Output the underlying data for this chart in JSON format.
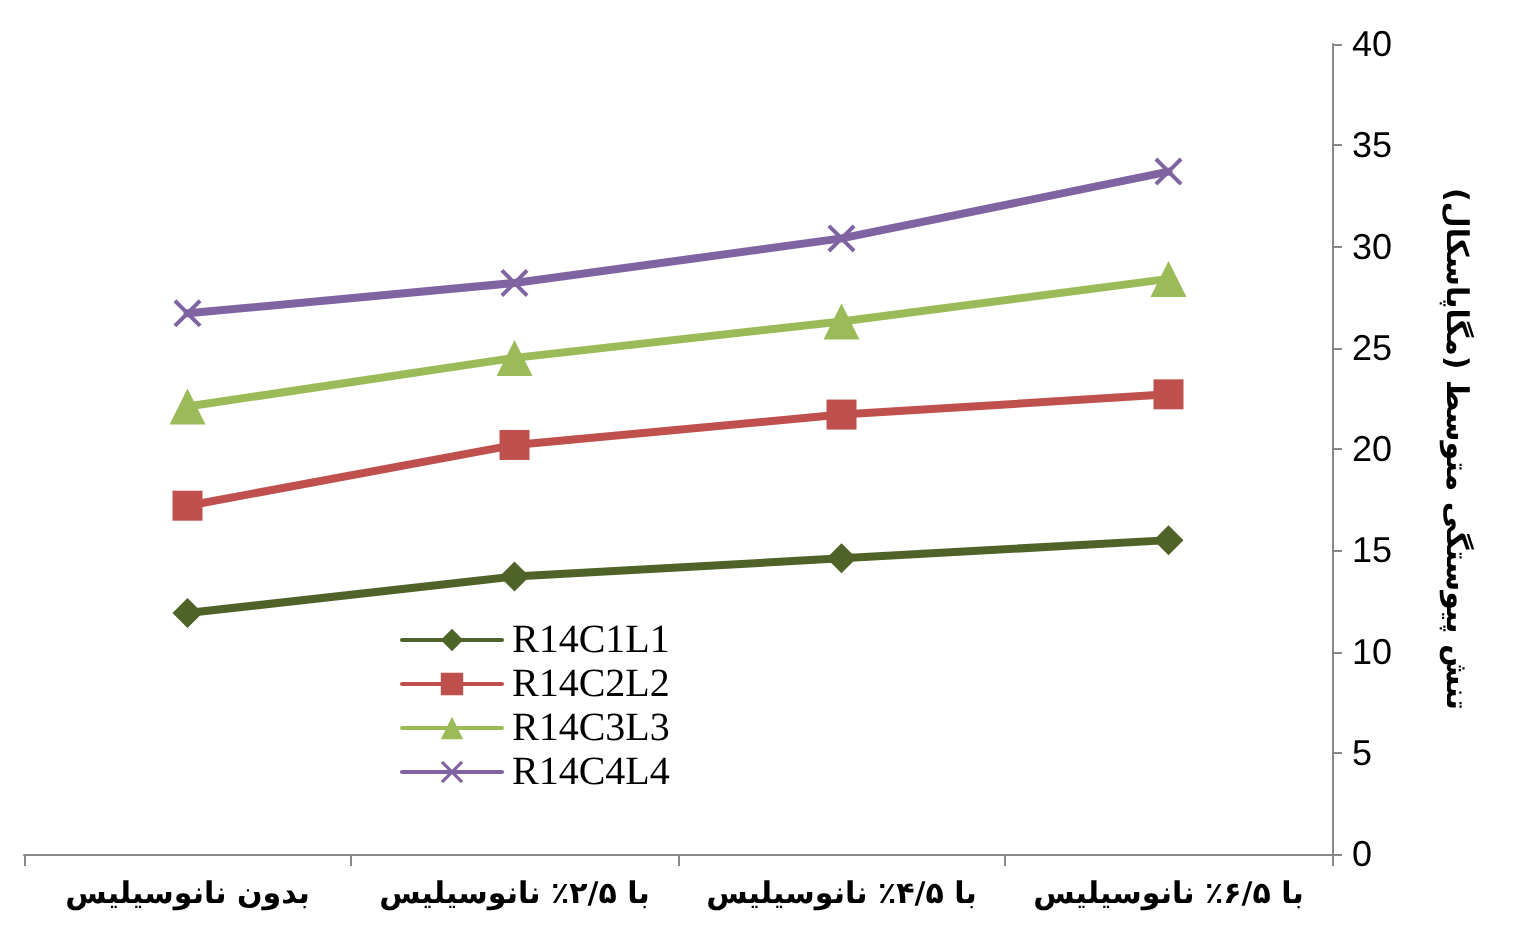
{
  "chart_data": {
    "type": "line",
    "ylabel": "تنش پیوستگی متوسط (مگاپاسکال)",
    "categories": [
      "بدون نانوسیلیس",
      "با ۲/۵٪ نانوسیلیس",
      "با ۴/۵٪ نانوسیلیس",
      "با ۶/۵٪ نانوسیلیس"
    ],
    "series": [
      {
        "name": "R14C1L1",
        "color": "#4f6228",
        "marker": "diamond",
        "values": [
          11.9,
          13.7,
          14.6,
          15.5
        ]
      },
      {
        "name": "R14C2L2",
        "color": "#c0504d",
        "marker": "square",
        "values": [
          17.2,
          20.2,
          21.7,
          22.7
        ]
      },
      {
        "name": "R14C3L3",
        "color": "#9bbb59",
        "marker": "triangle",
        "values": [
          22.1,
          24.5,
          26.3,
          28.4
        ]
      },
      {
        "name": "R14C4L4",
        "color": "#8064a2",
        "marker": "cross",
        "values": [
          26.7,
          28.2,
          30.4,
          33.7
        ]
      }
    ],
    "ylim": [
      0,
      40
    ],
    "yticks": [
      0,
      5,
      10,
      15,
      20,
      25,
      30,
      35,
      40
    ],
    "grid": false,
    "legend": "bottom left",
    "line_style": "solid"
  }
}
